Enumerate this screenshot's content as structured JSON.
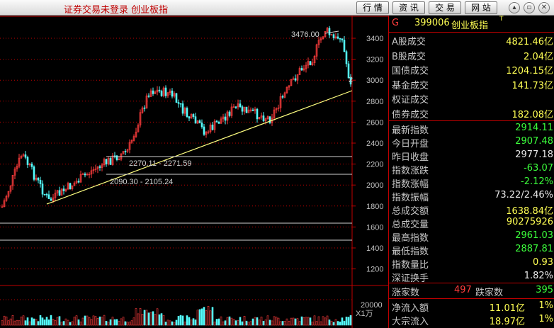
{
  "titlebar": {
    "title": "证券交易未登录 创业板指",
    "buttons": [
      "行 情",
      "资 讯",
      "交 易",
      "网 站"
    ],
    "window_controls": [
      "chevron-up-icon",
      "restore-icon",
      "close-icon"
    ]
  },
  "chart": {
    "y_ticks": [
      "3400",
      "3200",
      "3000",
      "2800",
      "2600",
      "2400",
      "2200",
      "2000",
      "1800",
      "1600",
      "1400",
      "1200"
    ],
    "vol_tick": "20000",
    "vol_unit": "X1万",
    "annotations": {
      "high": "3476.00",
      "right_marker": "2",
      "level1": "2270.11 - 2271.59",
      "level2": "2090.30 - 2105.24"
    },
    "colors": {
      "up": "#ff3c3c",
      "down": "#54ffff",
      "trend": "#ffff80",
      "grid": "#c00000"
    }
  },
  "panel": {
    "header": {
      "prefix": "G",
      "code": "399006",
      "name": "创业板指",
      "suffix": "T"
    },
    "turnover": [
      {
        "label": "A股成交",
        "value": "4821.46亿"
      },
      {
        "label": "B股成交",
        "value": "2.04亿"
      },
      {
        "label": "国债成交",
        "value": "1204.15亿"
      },
      {
        "label": "基金成交",
        "value": "141.73亿"
      },
      {
        "label": "权证成交",
        "value": ""
      },
      {
        "label": "债券成交",
        "value": "182.08亿"
      }
    ],
    "stats": [
      {
        "label": "最新指数",
        "value": "2914.11",
        "color": "green"
      },
      {
        "label": "今日开盘",
        "value": "2907.48",
        "color": "green"
      },
      {
        "label": "昨日收盘",
        "value": "2977.18",
        "color": "white"
      },
      {
        "label": "指数涨跌",
        "value": "-63.07",
        "color": "green"
      },
      {
        "label": "指数涨幅",
        "value": "-2.12%",
        "color": "green"
      },
      {
        "label": "指数振幅",
        "value": "73.22/2.46%",
        "color": "white"
      },
      {
        "label": "总成交额",
        "value": "1638.84亿",
        "color": "yellow"
      },
      {
        "label": "总成交量",
        "value": "90275926",
        "color": "yellow"
      },
      {
        "label": "最高指数",
        "value": "2961.03",
        "color": "green"
      },
      {
        "label": "最低指数",
        "value": "2887.81",
        "color": "green"
      },
      {
        "label": "指数量比",
        "value": "0.93",
        "color": "yellow"
      },
      {
        "label": "深证换手",
        "value": "1.82%",
        "color": "white"
      }
    ],
    "breadth": {
      "up_label": "涨家数",
      "up_value": "497",
      "down_label": "跌家数",
      "down_value": "395"
    },
    "flows": [
      {
        "label": "净流入额",
        "value": "11.01亿",
        "pct": "1%"
      },
      {
        "label": "大宗流入",
        "value": "18.97亿",
        "pct": "1%"
      }
    ]
  }
}
